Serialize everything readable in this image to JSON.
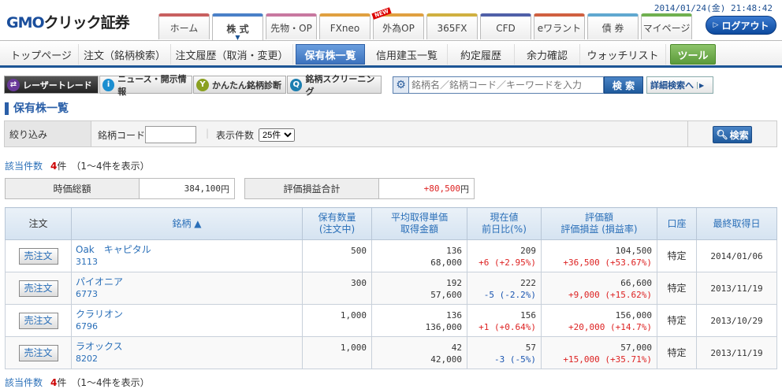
{
  "header": {
    "logo": "GMOクリック証券",
    "datetime": "2014/01/24(金) 21:48:42",
    "logout": "ログアウト",
    "tabs": [
      {
        "label": "ホーム",
        "color": "#c86060"
      },
      {
        "label": "株 式",
        "color": "#4a80c8"
      },
      {
        "label": "先物・OP",
        "color": "#c878a0"
      },
      {
        "label": "FXneo",
        "color": "#e0a040"
      },
      {
        "label": "外為OP",
        "color": "#e0a040",
        "badge": "NEW"
      },
      {
        "label": "365FX",
        "color": "#d0b040"
      },
      {
        "label": "CFD",
        "color": "#5060a8"
      },
      {
        "label": "eワラント",
        "color": "#d06040"
      },
      {
        "label": "債 券",
        "color": "#60a8d0"
      },
      {
        "label": "マイページ",
        "color": "#70b050"
      }
    ]
  },
  "subnav": [
    "トップページ",
    "注文（銘柄検索）",
    "注文履歴（取消・変更）",
    "保有株一覧",
    "信用建玉一覧",
    "約定履歴",
    "余力確認",
    "ウォッチリスト",
    "ツール"
  ],
  "tools": [
    "レーザートレード",
    "ニュース・開示情報",
    "かんたん銘柄診断",
    "銘柄スクリーニング"
  ],
  "search": {
    "placeholder": "銘柄名／銘柄コード／キーワードを入力",
    "button": "検 索",
    "advanced": "詳細検索へ"
  },
  "page_title": "保有株一覧",
  "filter": {
    "label": "絞り込み",
    "code_label": "銘柄コード",
    "code_value": "",
    "count_label": "表示件数",
    "count_value": "25件",
    "button": "検索"
  },
  "result": {
    "label": "該当件数",
    "count": "4",
    "unit": "件",
    "range": "（1〜4件を表示）"
  },
  "totals": {
    "market_label": "時価総額",
    "market_value": "384,100",
    "pl_label": "評価損益合計",
    "pl_value": "+80,500",
    "yen": "円"
  },
  "table": {
    "headers": [
      "注文",
      "銘柄 ▲",
      "保有数量\n(注文中)",
      "平均取得単価\n取得金額",
      "現在値\n前日比(%)",
      "評価額\n評価損益 (損益率)",
      "口座",
      "最終取得日"
    ],
    "sell_label": "売注文",
    "rows": [
      {
        "name": "Oak　キャピタル",
        "code": "3113",
        "qty": "500",
        "avg": "136",
        "cost": "68,000",
        "price": "209",
        "chg": "+6 (+2.95%)",
        "chg_dir": "up",
        "value": "104,500",
        "pl": "+36,500 (+53.67%)",
        "account": "特定",
        "date": "2014/01/06"
      },
      {
        "name": "パイオニア",
        "code": "6773",
        "qty": "300",
        "avg": "192",
        "cost": "57,600",
        "price": "222",
        "chg": "-5 (-2.2%)",
        "chg_dir": "down",
        "value": "66,600",
        "pl": "+9,000 (+15.62%)",
        "account": "特定",
        "date": "2013/11/19"
      },
      {
        "name": "クラリオン",
        "code": "6796",
        "qty": "1,000",
        "avg": "136",
        "cost": "136,000",
        "price": "156",
        "chg": "+1 (+0.64%)",
        "chg_dir": "up",
        "value": "156,000",
        "pl": "+20,000 (+14.7%)",
        "account": "特定",
        "date": "2013/10/29"
      },
      {
        "name": "ラオックス",
        "code": "8202",
        "qty": "1,000",
        "avg": "42",
        "cost": "42,000",
        "price": "57",
        "chg": "-3 (-5%)",
        "chg_dir": "down",
        "value": "57,000",
        "pl": "+15,000 (+35.71%)",
        "account": "特定",
        "date": "2013/11/19"
      }
    ]
  }
}
